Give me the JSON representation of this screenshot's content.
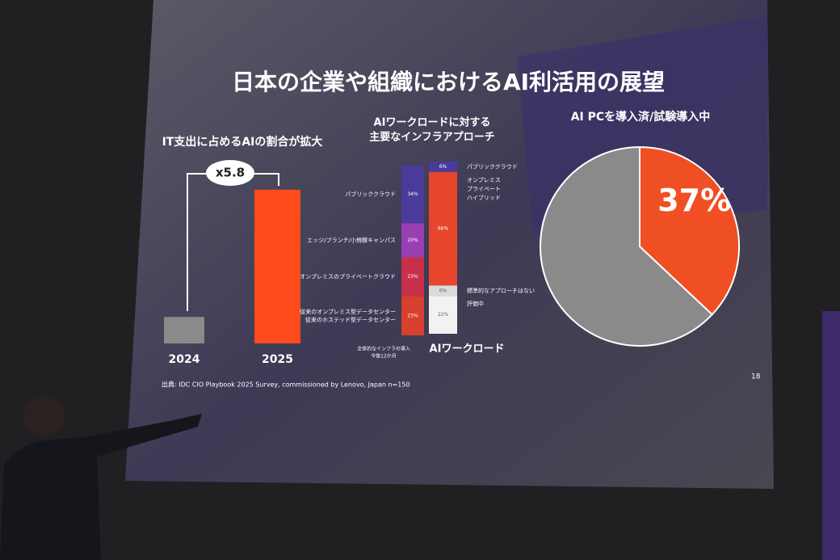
{
  "slide": {
    "title": "日本の企業や組織におけるAI利活用の展望",
    "source": "出典: IDC CIO Playbook 2025 Survey, commissioned by Lenovo, Japan n=150",
    "page": "18"
  },
  "chart_data": [
    {
      "type": "bar",
      "title": "IT支出に占めるAIの割合が拡大",
      "annotation": "x5.8",
      "categories": [
        "2024",
        "2025"
      ],
      "values": [
        1,
        5.8
      ],
      "colors": [
        "#8a8a8a",
        "#ff4a1c"
      ]
    },
    {
      "type": "stacked-bar",
      "title": [
        "AIワークロードに対する",
        "主要なインフラアプローチ"
      ],
      "bars": [
        {
          "category": [
            "全体的なインフラの導入",
            "今後12か月"
          ],
          "segments": [
            {
              "name": "パブリッククラウド",
              "value": 34,
              "value_label": "34%",
              "color": "#4a3a9c"
            },
            {
              "name": "エッジ/ブランチ/小規模キャンパス",
              "value": 20,
              "value_label": "20%",
              "color": "#9a3fb3"
            },
            {
              "name": "オンプレミスのプライベートクラウド",
              "value": 23,
              "value_label": "23%",
              "color": "#c8304a"
            },
            {
              "name": [
                "従来のオンプレミス型データセンター",
                "従来のホステッド型データセンター"
              ],
              "value": 23,
              "value_label": "23%",
              "color": "#d8402e"
            }
          ]
        },
        {
          "category": [
            "AIワークロード"
          ],
          "segments": [
            {
              "name": "パブリッククラウド",
              "value": 6,
              "value_label": "6%",
              "color": "#4a3a9c"
            },
            {
              "name": [
                "オンプレミス",
                "プライベート",
                "ハイブリッド"
              ],
              "value": 66,
              "value_label": "66%",
              "color": "#e8452c"
            },
            {
              "name": "標準的なアプローチはない",
              "value": 6,
              "value_label": "6%",
              "color": "#dcdcdc"
            },
            {
              "name": "評価中",
              "value": 22,
              "value_label": "22%",
              "color": "#f2f2f2"
            }
          ]
        }
      ]
    },
    {
      "type": "pie",
      "title": "AI PCを導入済/試験導入中",
      "values": [
        37,
        63
      ],
      "value_labels": [
        "37%",
        null
      ],
      "colors": [
        "#f04e23",
        "#8a8a8a"
      ]
    }
  ]
}
